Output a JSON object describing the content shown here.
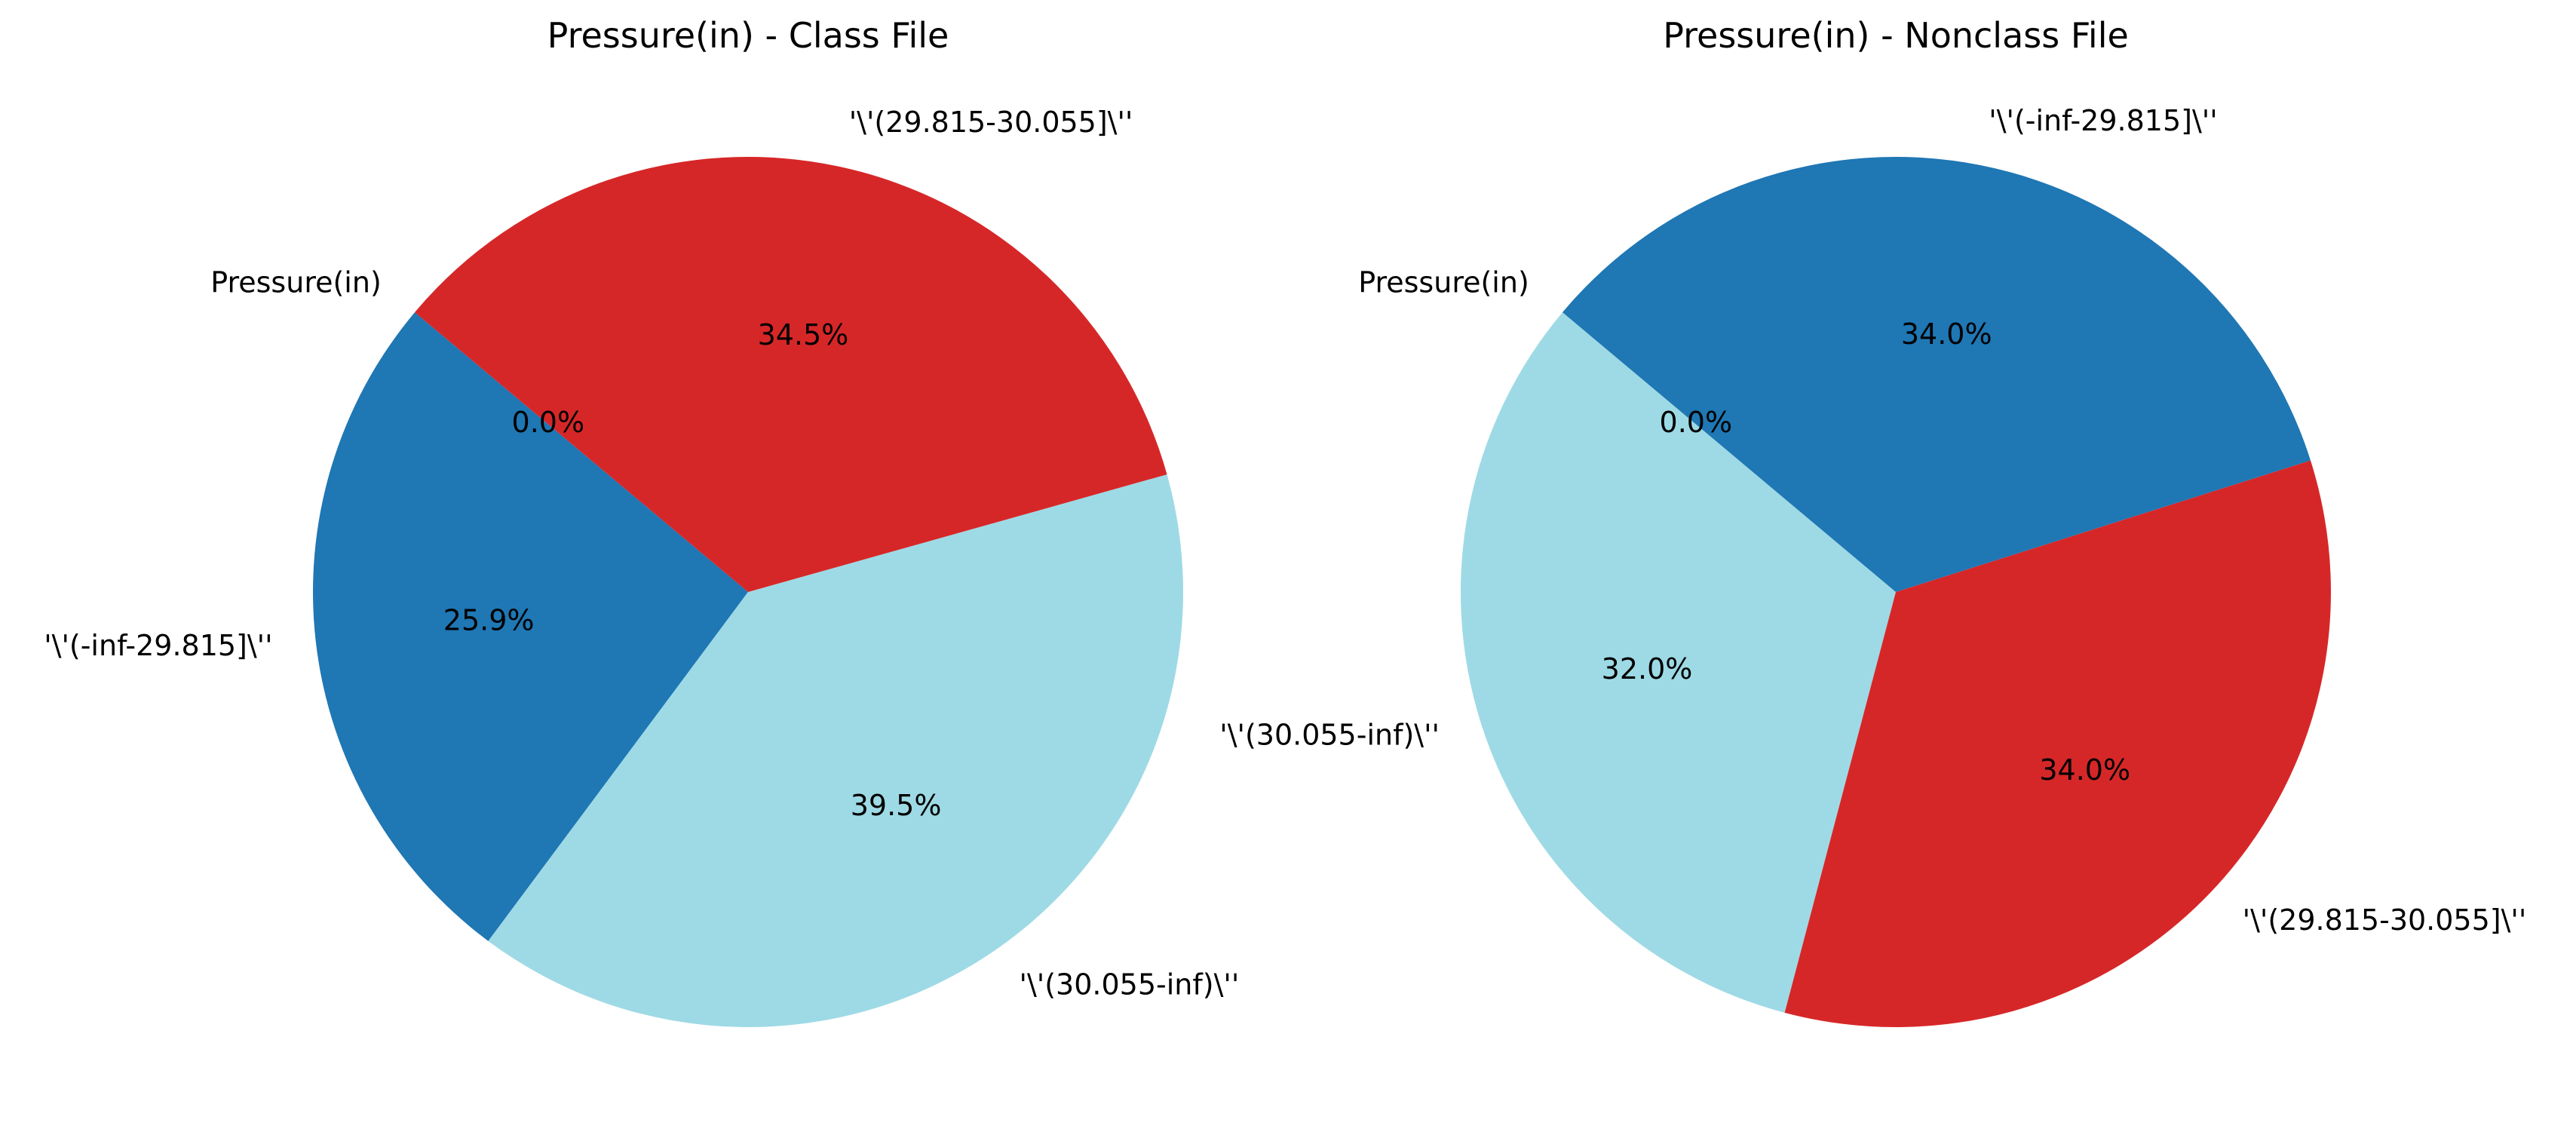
{
  "chart_data": [
    {
      "type": "pie",
      "title": "Pressure(in) - Class File",
      "start_angle_deg": 140,
      "direction": "counterclockwise",
      "slices": [
        {
          "label": "Pressure(in)",
          "value": 0.0,
          "pct_label": "0.0%",
          "color": "#9edae5"
        },
        {
          "label": "'\\'(-inf-29.815]\\''",
          "value": 25.9,
          "pct_label": "25.9%",
          "color": "#1f77b4"
        },
        {
          "label": "'\\'(30.055-inf)\\''",
          "value": 39.5,
          "pct_label": "39.5%",
          "color": "#9edae5"
        },
        {
          "label": "'\\'(29.815-30.055]\\''",
          "value": 34.5,
          "pct_label": "34.5%",
          "color": "#d62728"
        }
      ]
    },
    {
      "type": "pie",
      "title": "Pressure(in) - Nonclass File",
      "start_angle_deg": 140,
      "direction": "counterclockwise",
      "slices": [
        {
          "label": "Pressure(in)",
          "value": 0.0,
          "pct_label": "0.0%",
          "color": "#9edae5"
        },
        {
          "label": "'\\'(30.055-inf)\\''",
          "value": 32.0,
          "pct_label": "32.0%",
          "color": "#9edae5"
        },
        {
          "label": "'\\'(29.815-30.055]\\''",
          "value": 34.0,
          "pct_label": "34.0%",
          "color": "#d62728"
        },
        {
          "label": "'\\'(-inf-29.815]\\''",
          "value": 34.0,
          "pct_label": "34.0%",
          "color": "#1f77b4"
        }
      ]
    }
  ]
}
